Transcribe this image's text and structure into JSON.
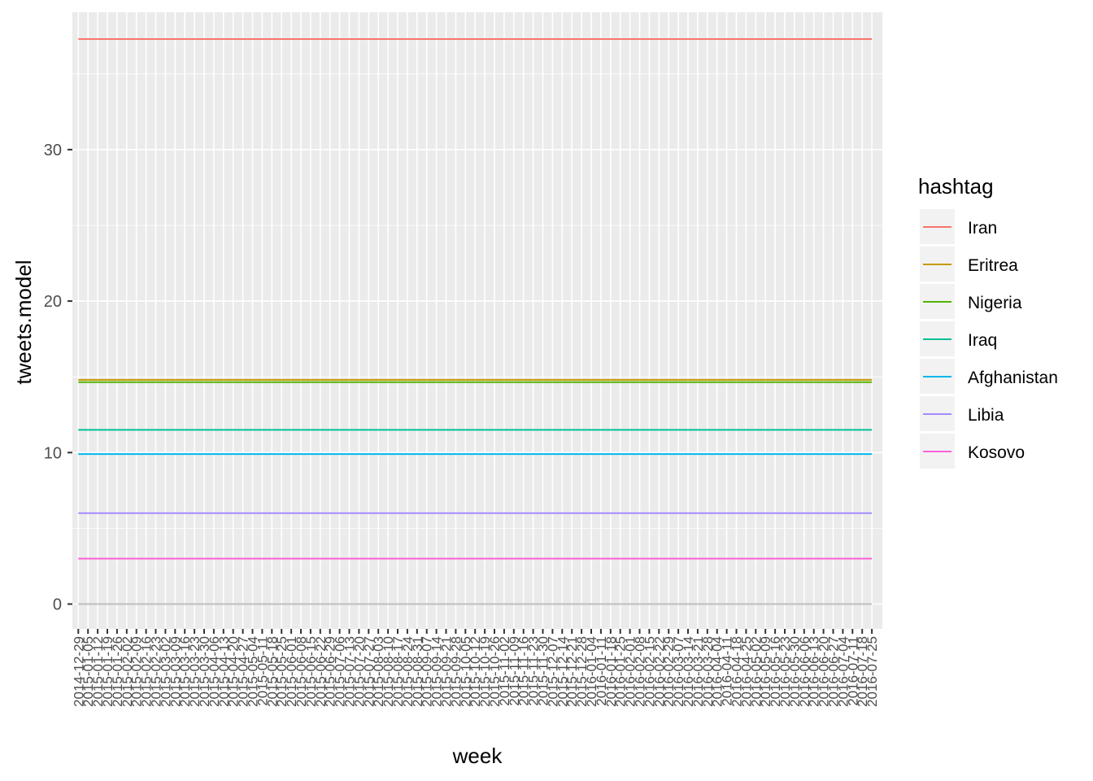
{
  "chart_data": {
    "type": "line",
    "xlabel": "week",
    "ylabel": "tweets.model",
    "legend_title": "hashtag",
    "legend_position": "right",
    "grid": true,
    "ylim": [
      -1.5,
      39.5
    ],
    "y_ticks": [
      0,
      10,
      20,
      30
    ],
    "x": [
      "2014-12-29",
      "2015-01-05",
      "2015-01-12",
      "2015-01-19",
      "2015-01-26",
      "2015-02-02",
      "2015-02-09",
      "2015-02-16",
      "2015-02-23",
      "2015-03-02",
      "2015-03-09",
      "2015-03-16",
      "2015-03-23",
      "2015-03-30",
      "2015-04-06",
      "2015-04-13",
      "2015-04-20",
      "2015-04-27",
      "2015-05-04",
      "2015-05-11",
      "2015-05-18",
      "2015-05-25",
      "2015-06-01",
      "2015-06-08",
      "2015-06-15",
      "2015-06-22",
      "2015-06-29",
      "2015-07-06",
      "2015-07-13",
      "2015-07-20",
      "2015-07-27",
      "2015-08-03",
      "2015-08-10",
      "2015-08-17",
      "2015-08-24",
      "2015-08-31",
      "2015-09-07",
      "2015-09-14",
      "2015-09-21",
      "2015-09-28",
      "2015-10-05",
      "2015-10-12",
      "2015-10-19",
      "2015-10-26",
      "2015-11-02",
      "2015-11-09",
      "2015-11-16",
      "2015-11-23",
      "2015-11-30",
      "2015-12-07",
      "2015-12-14",
      "2015-12-21",
      "2015-12-28",
      "2016-01-04",
      "2016-01-11",
      "2016-01-18",
      "2016-01-25",
      "2016-02-01",
      "2016-02-08",
      "2016-02-15",
      "2016-02-22",
      "2016-02-29",
      "2016-03-07",
      "2016-03-14",
      "2016-03-21",
      "2016-03-28",
      "2016-04-04",
      "2016-04-11",
      "2016-04-18",
      "2016-04-25",
      "2016-05-02",
      "2016-05-09",
      "2016-05-16",
      "2016-05-23",
      "2016-05-30",
      "2016-06-06",
      "2016-06-13",
      "2016-06-20",
      "2016-06-27",
      "2016-07-04",
      "2016-07-11",
      "2016-07-18",
      "2016-07-25"
    ],
    "series": [
      {
        "name": "Iran",
        "color": "#F8766D",
        "value": 37.3
      },
      {
        "name": "Eritrea",
        "color": "#C49A00",
        "value": 14.8
      },
      {
        "name": "Nigeria",
        "color": "#53B400",
        "value": 14.65
      },
      {
        "name": "Iraq",
        "color": "#00C094",
        "value": 11.5
      },
      {
        "name": "Afghanistan",
        "color": "#00B6EB",
        "value": 9.9
      },
      {
        "name": "Libia",
        "color": "#A58AFF",
        "value": 6.0
      },
      {
        "name": "Kosovo",
        "color": "#FB61D7",
        "value": 3.0
      }
    ]
  }
}
